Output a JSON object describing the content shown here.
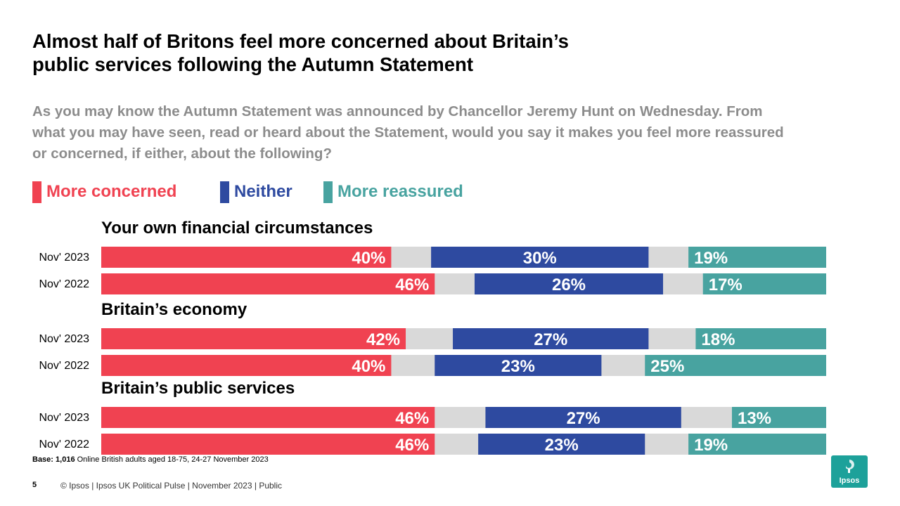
{
  "title_lines": [
    "Almost half of Britons feel more concerned about Britain’s",
    "public services following the Autumn Statement"
  ],
  "question": "As you may know the Autumn Statement was announced by Chancellor Jeremy Hunt on Wednesday. From what you may have seen, read or heard about the Statement, would you say it makes you feel more reassured or concerned, if either, about the following?",
  "colors": {
    "concerned": "#f04251",
    "neither": "#2e4aa0",
    "reassured": "#48a3a0",
    "dont_know": "#d9d9d9",
    "question_text": "#8c8c8c"
  },
  "chart_data": {
    "type": "bar",
    "orientation": "horizontal",
    "stacked": true,
    "xlim": [
      0,
      100
    ],
    "legend": [
      {
        "key": "concerned",
        "label": "More concerned"
      },
      {
        "key": "neither",
        "label": "Neither"
      },
      {
        "key": "reassured",
        "label": "More reassured"
      }
    ],
    "groups": [
      {
        "title": "Your own financial circumstances",
        "rows": [
          {
            "label": "Nov' 2023",
            "concerned": 40,
            "neither": 30,
            "reassured": 19
          },
          {
            "label": "Nov' 2022",
            "concerned": 46,
            "neither": 26,
            "reassured": 17
          }
        ]
      },
      {
        "title": "Britain’s economy",
        "rows": [
          {
            "label": "Nov' 2023",
            "concerned": 42,
            "neither": 27,
            "reassured": 18
          },
          {
            "label": "Nov' 2022",
            "concerned": 40,
            "neither": 23,
            "reassured": 25
          }
        ]
      },
      {
        "title": "Britain’s public services",
        "rows": [
          {
            "label": "Nov' 2023",
            "concerned": 46,
            "neither": 27,
            "reassured": 13
          },
          {
            "label": "Nov' 2022",
            "concerned": 46,
            "neither": 23,
            "reassured": 19
          }
        ]
      }
    ]
  },
  "base": {
    "label": "Base:",
    "count": "1,016",
    "text": "Online British adults aged 18-75, 24-27 November 2023"
  },
  "page_number": "5",
  "footer": "© Ipsos  |  Ipsos UK Political Pulse | November  2023 | Public",
  "logo_text": "Ipsos"
}
